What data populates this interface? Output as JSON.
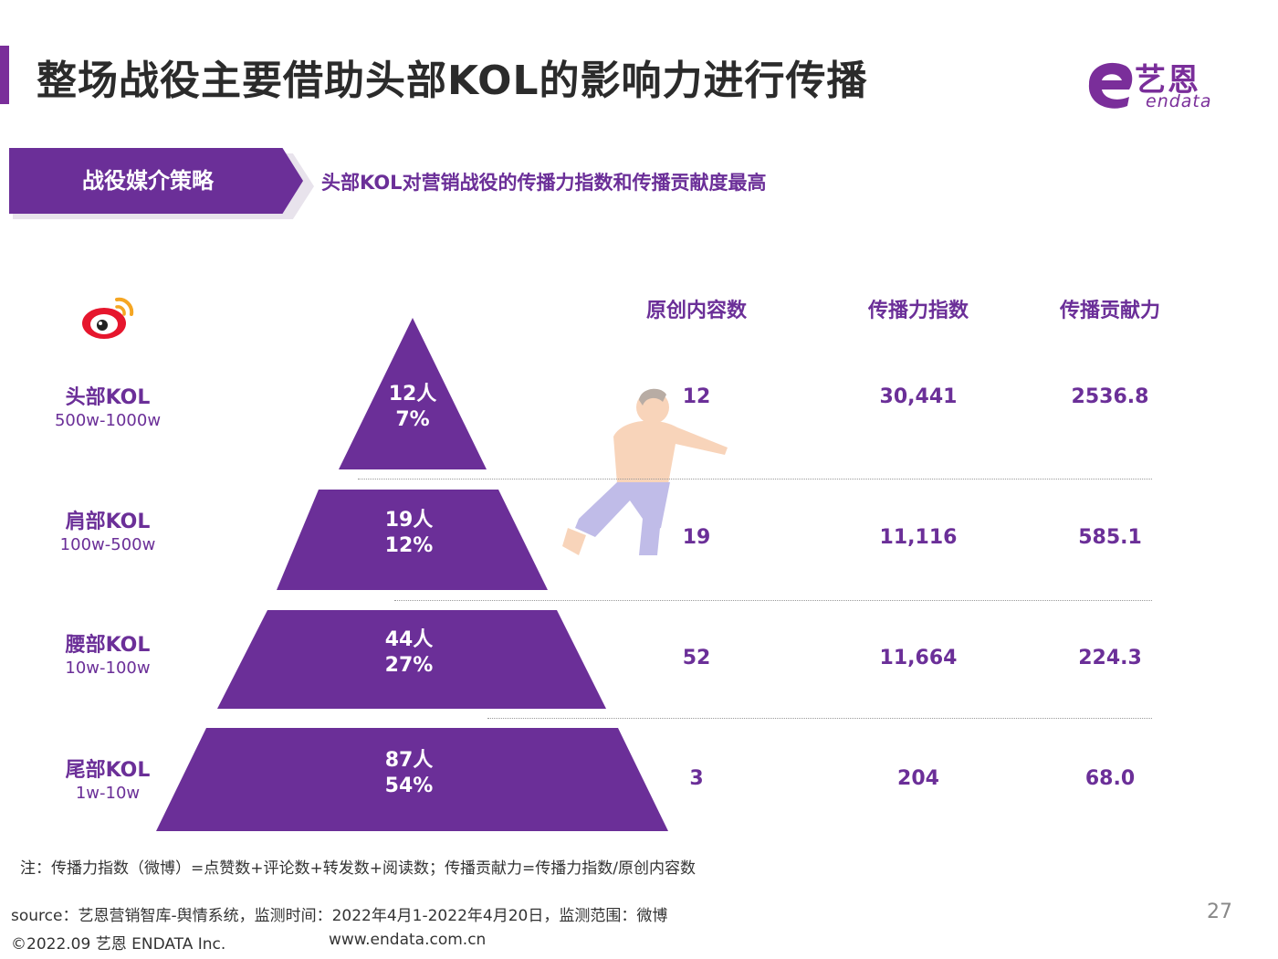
{
  "header": {
    "title": "整场战役主要借助头部KOL的影响力进行传播",
    "logo_cn": "艺恩",
    "logo_en": "endata"
  },
  "strategy": {
    "tag": "战役媒介策略",
    "subtitle": "头部KOL对营销战役的传播力指数和传播贡献度最高"
  },
  "table": {
    "headers": [
      "原创内容数",
      "传播力指数",
      "传播贡献力"
    ],
    "rows": [
      {
        "name": "头部KOL",
        "range": "500w-1000w",
        "people": "12人",
        "percent": "7%",
        "original": "12",
        "index": "30,441",
        "contribution": "2536.8",
        "share": 7
      },
      {
        "name": "肩部KOL",
        "range": "100w-500w",
        "people": "19人",
        "percent": "12%",
        "original": "19",
        "index": "11,116",
        "contribution": "585.1",
        "share": 12
      },
      {
        "name": "腰部KOL",
        "range": "10w-100w",
        "people": "44人",
        "percent": "27%",
        "original": "52",
        "index": "11,664",
        "contribution": "224.3",
        "share": 27
      },
      {
        "name": "尾部KOL",
        "range": "1w-10w",
        "people": "87人",
        "percent": "54%",
        "original": "3",
        "index": "204",
        "contribution": "68.0",
        "share": 54
      }
    ]
  },
  "icons": {
    "platform": "weibo-icon",
    "illustration": "running-person-icon"
  },
  "colors": {
    "accent": "#6b2f98",
    "text": "#2b2b2b"
  },
  "footer": {
    "note": "注：传播力指数（微博）=点赞数+评论数+转发数+阅读数；传播贡献力=传播力指数/原创内容数",
    "source": "source：艺恩营销智库-舆情系统，监测时间：2022年4月1-2022年4月20日，监测范围：微博",
    "copyright": "©2022.09 艺恩 ENDATA Inc.",
    "website": "www.endata.com.cn",
    "page_number": "27"
  }
}
